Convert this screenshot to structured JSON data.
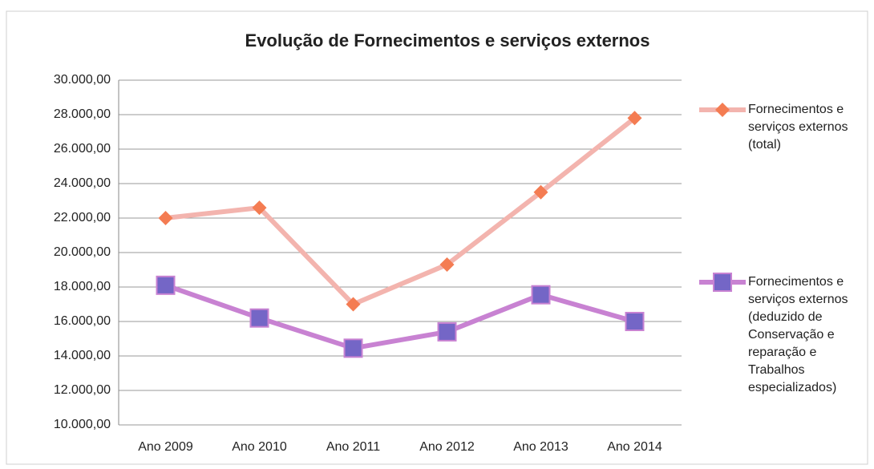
{
  "chart_data": {
    "type": "line",
    "title": "Evolução de Fornecimentos e serviços externos",
    "categories": [
      "Ano 2009",
      "Ano 2010",
      "Ano 2011",
      "Ano 2012",
      "Ano 2013",
      "Ano 2014"
    ],
    "series": [
      {
        "name": "Fornecimentos e serviços externos (total)",
        "color": "#f3b4ae",
        "marker_color": "#f47c52",
        "marker": "diamond",
        "values": [
          22000,
          22600,
          17000,
          19300,
          23500,
          27800
        ]
      },
      {
        "name": "Fornecimentos e serviços externos (deduzido de Conservação e reparação e Trabalhos especializados)",
        "color": "#c882d2",
        "marker_color": "#7466c6",
        "marker": "square",
        "values": [
          18100,
          16200,
          14450,
          15400,
          17550,
          16000
        ]
      }
    ],
    "ylim": [
      10000,
      30000
    ],
    "yticks": [
      {
        "value": 10000,
        "label": "10.000,00"
      },
      {
        "value": 12000,
        "label": "12.000,00"
      },
      {
        "value": 14000,
        "label": "14.000,00"
      },
      {
        "value": 16000,
        "label": "16.000,00"
      },
      {
        "value": 18000,
        "label": "18.000,00"
      },
      {
        "value": 20000,
        "label": "20.000,00"
      },
      {
        "value": 22000,
        "label": "22.000,00"
      },
      {
        "value": 24000,
        "label": "24.000,00"
      },
      {
        "value": 26000,
        "label": "26.000,00"
      },
      {
        "value": 28000,
        "label": "28.000,00"
      },
      {
        "value": 30000,
        "label": "30.000,00"
      }
    ],
    "grid": true
  }
}
